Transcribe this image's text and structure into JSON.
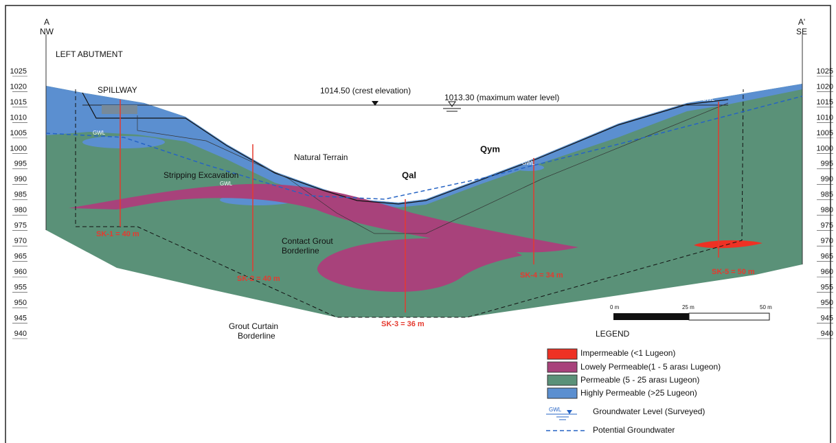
{
  "header": {
    "left_point": "A",
    "left_direction": "NW",
    "right_point": "A'",
    "right_direction": "SE",
    "left_abutment": "LEFT ABUTMENT"
  },
  "elevations": [
    1025,
    1020,
    1015,
    1010,
    1005,
    1000,
    995,
    990,
    985,
    980,
    975,
    970,
    965,
    960,
    955,
    950,
    945,
    940
  ],
  "annotations": {
    "spillway": "SPILLWAY",
    "crest": "1014.50 (crest elevation)",
    "max_water": "1013.30 (maximum water level)",
    "natural_terrain": "Natural Terrain",
    "stripping": "Stripping Excavation",
    "qal": "Qal",
    "qym": "Qym",
    "contact_grout": [
      "Contact Grout",
      "Borderline"
    ],
    "grout_curtain": [
      "Grout Curtain",
      "Borderline"
    ]
  },
  "gwl_labels": [
    "GWL",
    "GWL",
    "GWL",
    "GWL",
    "GWL"
  ],
  "boreholes": [
    "SK-1 = 40 m",
    "SK-2 = 40 m",
    "SK-3 = 36 m",
    "SK-4 = 34 m",
    "SK-5 = 50 m"
  ],
  "scale": [
    "0 m",
    "25 m",
    "50 m"
  ],
  "legend": {
    "title": "LEGEND",
    "items": [
      "Impermeable (<1 Lugeon)",
      "Lowely Permeable(1 - 5 arası Lugeon)",
      "Permeable (5 - 25 arası Lugeon)",
      "Highly Permeable (>25 Lugeon)",
      "Groundwater Level (Surveyed)",
      "Potential Groundwater"
    ],
    "symbol_label": "GWL"
  }
}
